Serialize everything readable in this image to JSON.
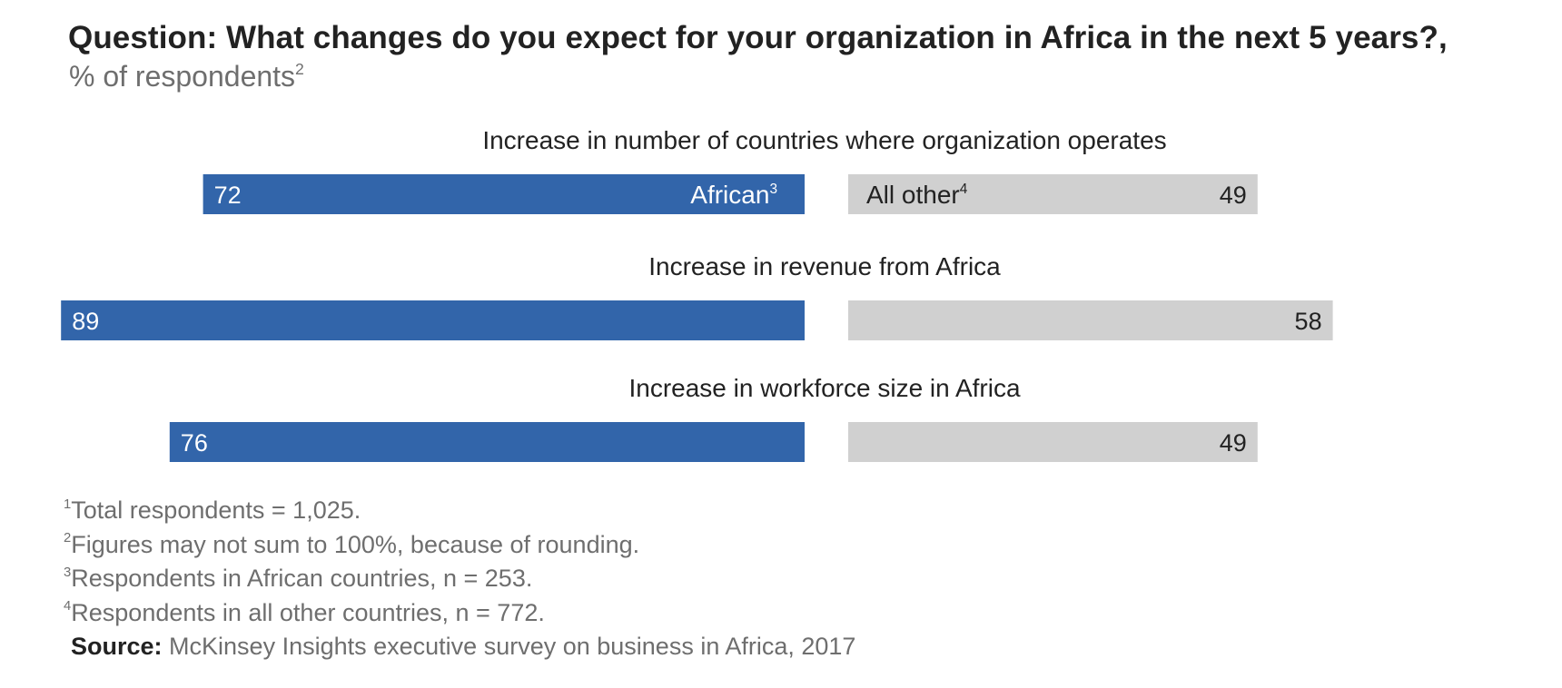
{
  "header": {
    "title": "Question: What changes do you expect for your organization in Africa in the next 5 years?,",
    "subtitle": "% of respondents",
    "subtitle_sup": "2"
  },
  "chart_data": {
    "type": "bar",
    "orientation": "horizontal-diverging",
    "xlim": [
      0,
      100
    ],
    "categories": [
      "Increase in number of countries where organization operates",
      "Increase in revenue from Africa",
      "Increase in workforce size in Africa"
    ],
    "series": [
      {
        "name": "African",
        "name_sup": "3",
        "values": [
          72,
          89,
          76
        ],
        "color": "#3265aa",
        "side": "left"
      },
      {
        "name": "All other",
        "name_sup": "4",
        "values": [
          49,
          58,
          49
        ],
        "color": "#d0d0d0",
        "side": "right"
      }
    ],
    "legend": "inline-first-row"
  },
  "footnotes": [
    {
      "sup": "1",
      "text": "Total respondents = 1,025."
    },
    {
      "sup": "2",
      "text": "Figures may not sum to 100%, because of rounding."
    },
    {
      "sup": "3",
      "text": "Respondents in African countries, n = 253."
    },
    {
      "sup": "4",
      "text": "Respondents in all other countries, n = 772."
    }
  ],
  "source": {
    "label": "Source:",
    "text": "McKinsey Insights executive survey on business in Africa, 2017"
  }
}
